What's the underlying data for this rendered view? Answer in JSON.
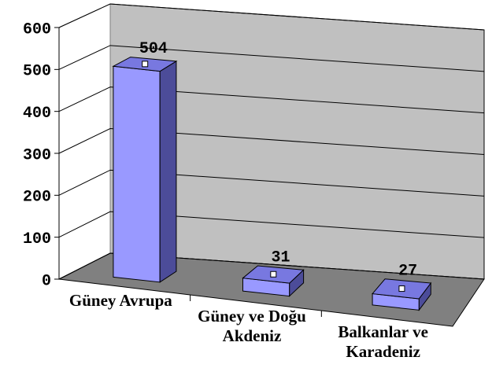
{
  "chart_data": {
    "type": "bar3d",
    "categories": [
      "Güney Avrupa",
      "Güney ve Doğu Akdeniz",
      "Balkanlar ve Karadeniz"
    ],
    "values": [
      504,
      31,
      27
    ],
    "color": "#9999ff",
    "ylim": [
      0,
      600
    ],
    "yticks": [
      0,
      100,
      200,
      300,
      400,
      500,
      600
    ],
    "grid": true
  }
}
